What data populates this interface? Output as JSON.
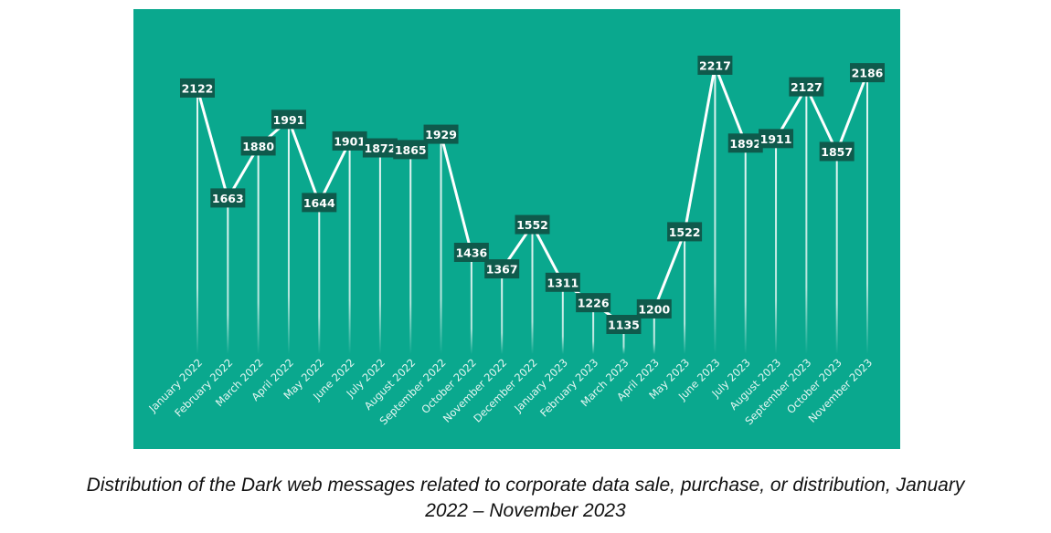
{
  "chart_data": {
    "type": "line",
    "title": "",
    "xlabel": "",
    "ylabel": "",
    "categories": [
      "January 2022",
      "February 2022",
      "March 2022",
      "April 2022",
      "May 2022",
      "June 2022",
      "July 2022",
      "August 2022",
      "September 2022",
      "October 2022",
      "November 2022",
      "December 2022",
      "January 2023",
      "February 2023",
      "March 2023",
      "April 2023",
      "May 2023",
      "June 2023",
      "July 2023",
      "August 2023",
      "September 2023",
      "October 2023",
      "November 2023"
    ],
    "values": [
      2122,
      1663,
      1880,
      1991,
      1644,
      1901,
      1872,
      1865,
      1929,
      1436,
      1367,
      1552,
      1311,
      1226,
      1135,
      1200,
      1522,
      2217,
      1892,
      1911,
      2127,
      1857,
      2186
    ],
    "data_labels": true,
    "grid": false,
    "legend": "none",
    "colors": {
      "background": "#0aa88e",
      "line": "#ffffff",
      "label_box": "#0f5a4c",
      "label_text": "#ffffff",
      "axis_text": "#e6f7f3"
    }
  },
  "caption": {
    "line1": "Distribution of the Dark web messages related to corporate data sale, purchase, or distribution, January",
    "line2": "2022 – November 2023"
  }
}
